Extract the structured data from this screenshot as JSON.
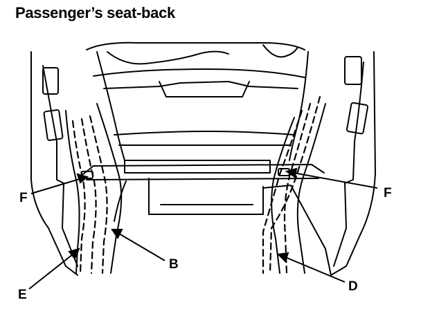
{
  "title": "Passenger’s seat-back",
  "callouts": {
    "f_left": "F",
    "f_right": "F",
    "b": "B",
    "e": "E",
    "d": "D"
  },
  "colors": {
    "line": "#000000",
    "background": "#ffffff"
  }
}
